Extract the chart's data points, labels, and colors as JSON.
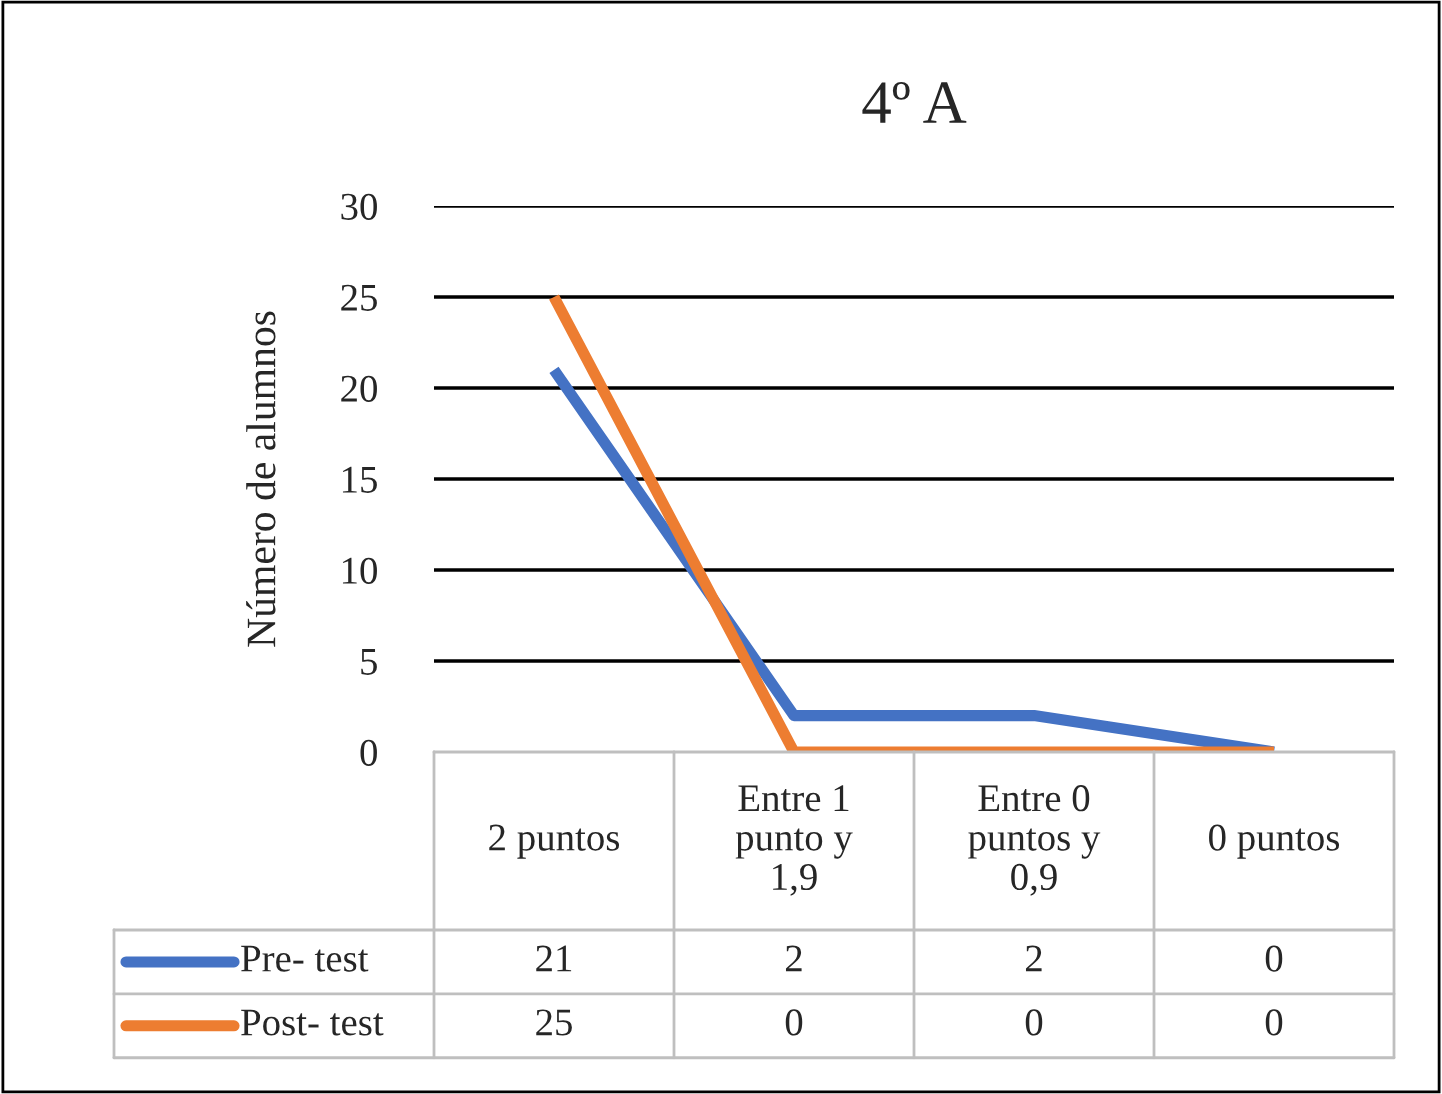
{
  "chart_data": {
    "type": "line",
    "title": "4º A",
    "ylabel": "Número de alumnos",
    "categories": [
      "2 puntos",
      "Entre 1 punto y 1,9",
      "Entre 0 puntos y 0,9",
      "0 puntos"
    ],
    "series": [
      {
        "name": "Pre- test",
        "color": "#4472c4",
        "values": [
          21,
          2,
          2,
          0
        ]
      },
      {
        "name": "Post- test",
        "color": "#ed7d31",
        "values": [
          25,
          0,
          0,
          0
        ]
      }
    ],
    "ylim": [
      0,
      30
    ],
    "yticks": [
      0,
      5,
      10,
      15,
      20,
      25,
      30
    ],
    "grid": "y",
    "legend": "bottom",
    "data_labels": true
  }
}
